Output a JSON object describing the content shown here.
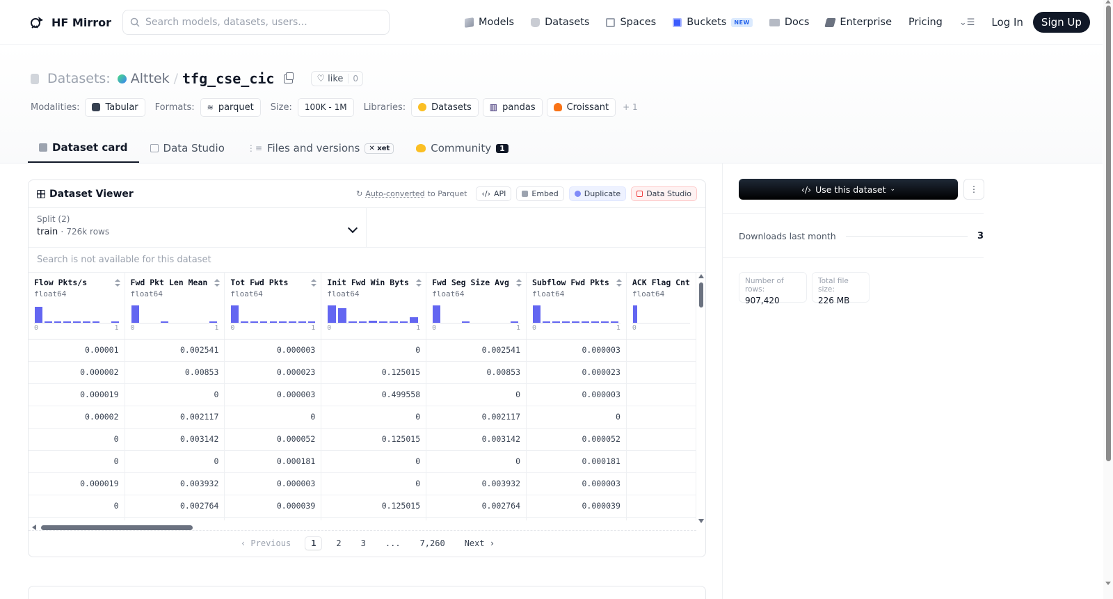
{
  "nav": {
    "logo_text": "HF Mirror",
    "search_placeholder": "Search models, datasets, users...",
    "links": [
      {
        "label": "Models",
        "icon": "models-icon"
      },
      {
        "label": "Datasets",
        "icon": "datasets-icon"
      },
      {
        "label": "Spaces",
        "icon": "spaces-icon"
      },
      {
        "label": "Buckets",
        "icon": "buckets-icon",
        "badge": "NEW"
      },
      {
        "label": "Docs",
        "icon": "docs-icon"
      },
      {
        "label": "Enterprise",
        "icon": "enterprise-icon"
      },
      {
        "label": "Pricing"
      }
    ],
    "login": "Log In",
    "signup": "Sign Up"
  },
  "repo": {
    "type_label": "Datasets:",
    "owner": "Alttek",
    "separator": "/",
    "name": "tfg_cse_cic",
    "like_label": "like",
    "like_count": "0"
  },
  "meta": {
    "modalities_label": "Modalities:",
    "modalities": [
      "Tabular"
    ],
    "formats_label": "Formats:",
    "formats": [
      "parquet"
    ],
    "size_label": "Size:",
    "size": "100K - 1M",
    "libraries_label": "Libraries:",
    "libraries": [
      "Datasets",
      "pandas",
      "Croissant"
    ],
    "libraries_more": "+ 1"
  },
  "tabs": [
    {
      "label": "Dataset card",
      "active": true
    },
    {
      "label": "Data Studio"
    },
    {
      "label": "Files and versions",
      "badge": "xet"
    },
    {
      "label": "Community",
      "count": "1"
    }
  ],
  "viewer": {
    "title": "Dataset Viewer",
    "autoconv_link": "Auto-converted",
    "autoconv_rest": "to Parquet",
    "api": "API",
    "embed": "Embed",
    "duplicate": "Duplicate",
    "data_studio": "Data Studio",
    "split_label": "Split (2)",
    "split_value": "train",
    "split_sep": "·",
    "split_rows": "726k rows",
    "search_disabled": "Search is not available for this dataset",
    "columns": [
      {
        "name": "Flow Pkts/s",
        "type": "float64",
        "min": "0",
        "max": "1",
        "hist": [
          0.9,
          0.05,
          0.05,
          0.05,
          0.05,
          0.05,
          0.05,
          0.0,
          0.05
        ],
        "width": 144
      },
      {
        "name": "Fwd Pkt Len Mean",
        "type": "float64",
        "min": "0",
        "max": "1",
        "hist": [
          0.95,
          0.0,
          0.0,
          0.05,
          0.0,
          0.0,
          0.0,
          0.0,
          0.05
        ],
        "width": 146
      },
      {
        "name": "Tot Fwd Pkts",
        "type": "float64",
        "min": "0",
        "max": "1",
        "hist": [
          0.95,
          0.05,
          0.05,
          0.05,
          0.05,
          0.05,
          0.05,
          0.05,
          0.05
        ],
        "width": 144
      },
      {
        "name": "Init Fwd Win Byts",
        "type": "float64",
        "min": "0",
        "max": "1",
        "hist": [
          0.95,
          0.8,
          0.05,
          0.05,
          0.12,
          0.05,
          0.05,
          0.05,
          0.3
        ],
        "width": 153
      },
      {
        "name": "Fwd Seg Size Avg",
        "type": "float64",
        "min": "0",
        "max": "1",
        "hist": [
          0.95,
          0.0,
          0.0,
          0.05,
          0.0,
          0.0,
          0.0,
          0.0,
          0.05
        ],
        "width": 146
      },
      {
        "name": "Subflow Fwd Pkts",
        "type": "float64",
        "min": "0",
        "max": "1",
        "hist": [
          0.95,
          0.05,
          0.05,
          0.05,
          0.05,
          0.05,
          0.05,
          0.05,
          0.05
        ],
        "width": 146
      },
      {
        "name": "ACK Flag Cnt",
        "type": "float64",
        "min": "0",
        "max": "",
        "hist": [
          0.95
        ],
        "width": 100
      }
    ],
    "rows": [
      [
        "0.00001",
        "0.002541",
        "0.000003",
        "0",
        "0.002541",
        "0.000003",
        ""
      ],
      [
        "0.000002",
        "0.00853",
        "0.000023",
        "0.125015",
        "0.00853",
        "0.000023",
        ""
      ],
      [
        "0.000019",
        "0",
        "0.000003",
        "0.499558",
        "0",
        "0.000003",
        ""
      ],
      [
        "0.00002",
        "0.002117",
        "0",
        "0",
        "0.002117",
        "0",
        ""
      ],
      [
        "0",
        "0.003142",
        "0.000052",
        "0.125015",
        "0.003142",
        "0.000052",
        ""
      ],
      [
        "0",
        "0",
        "0.000181",
        "0",
        "0",
        "0.000181",
        ""
      ],
      [
        "0.000019",
        "0.003932",
        "0.000003",
        "0",
        "0.003932",
        "0.000003",
        ""
      ],
      [
        "0",
        "0.002764",
        "0.000039",
        "0.125015",
        "0.002764",
        "0.000039",
        ""
      ],
      [
        "",
        "",
        "",
        "",
        "",
        "",
        ""
      ]
    ],
    "pager": {
      "previous": "Previous",
      "pages": [
        "1",
        "2",
        "3",
        "...",
        "7,260"
      ],
      "next": "Next",
      "current": "1"
    }
  },
  "sidebar": {
    "use_button": "Use this dataset",
    "downloads_label": "Downloads last month",
    "downloads_value": "3",
    "rows_label": "Number of rows:",
    "rows_value": "907,420",
    "size_label": "Total file size:",
    "size_value": "226 MB"
  },
  "colors": {
    "accent": "#6366f1",
    "dark": "#111827"
  }
}
